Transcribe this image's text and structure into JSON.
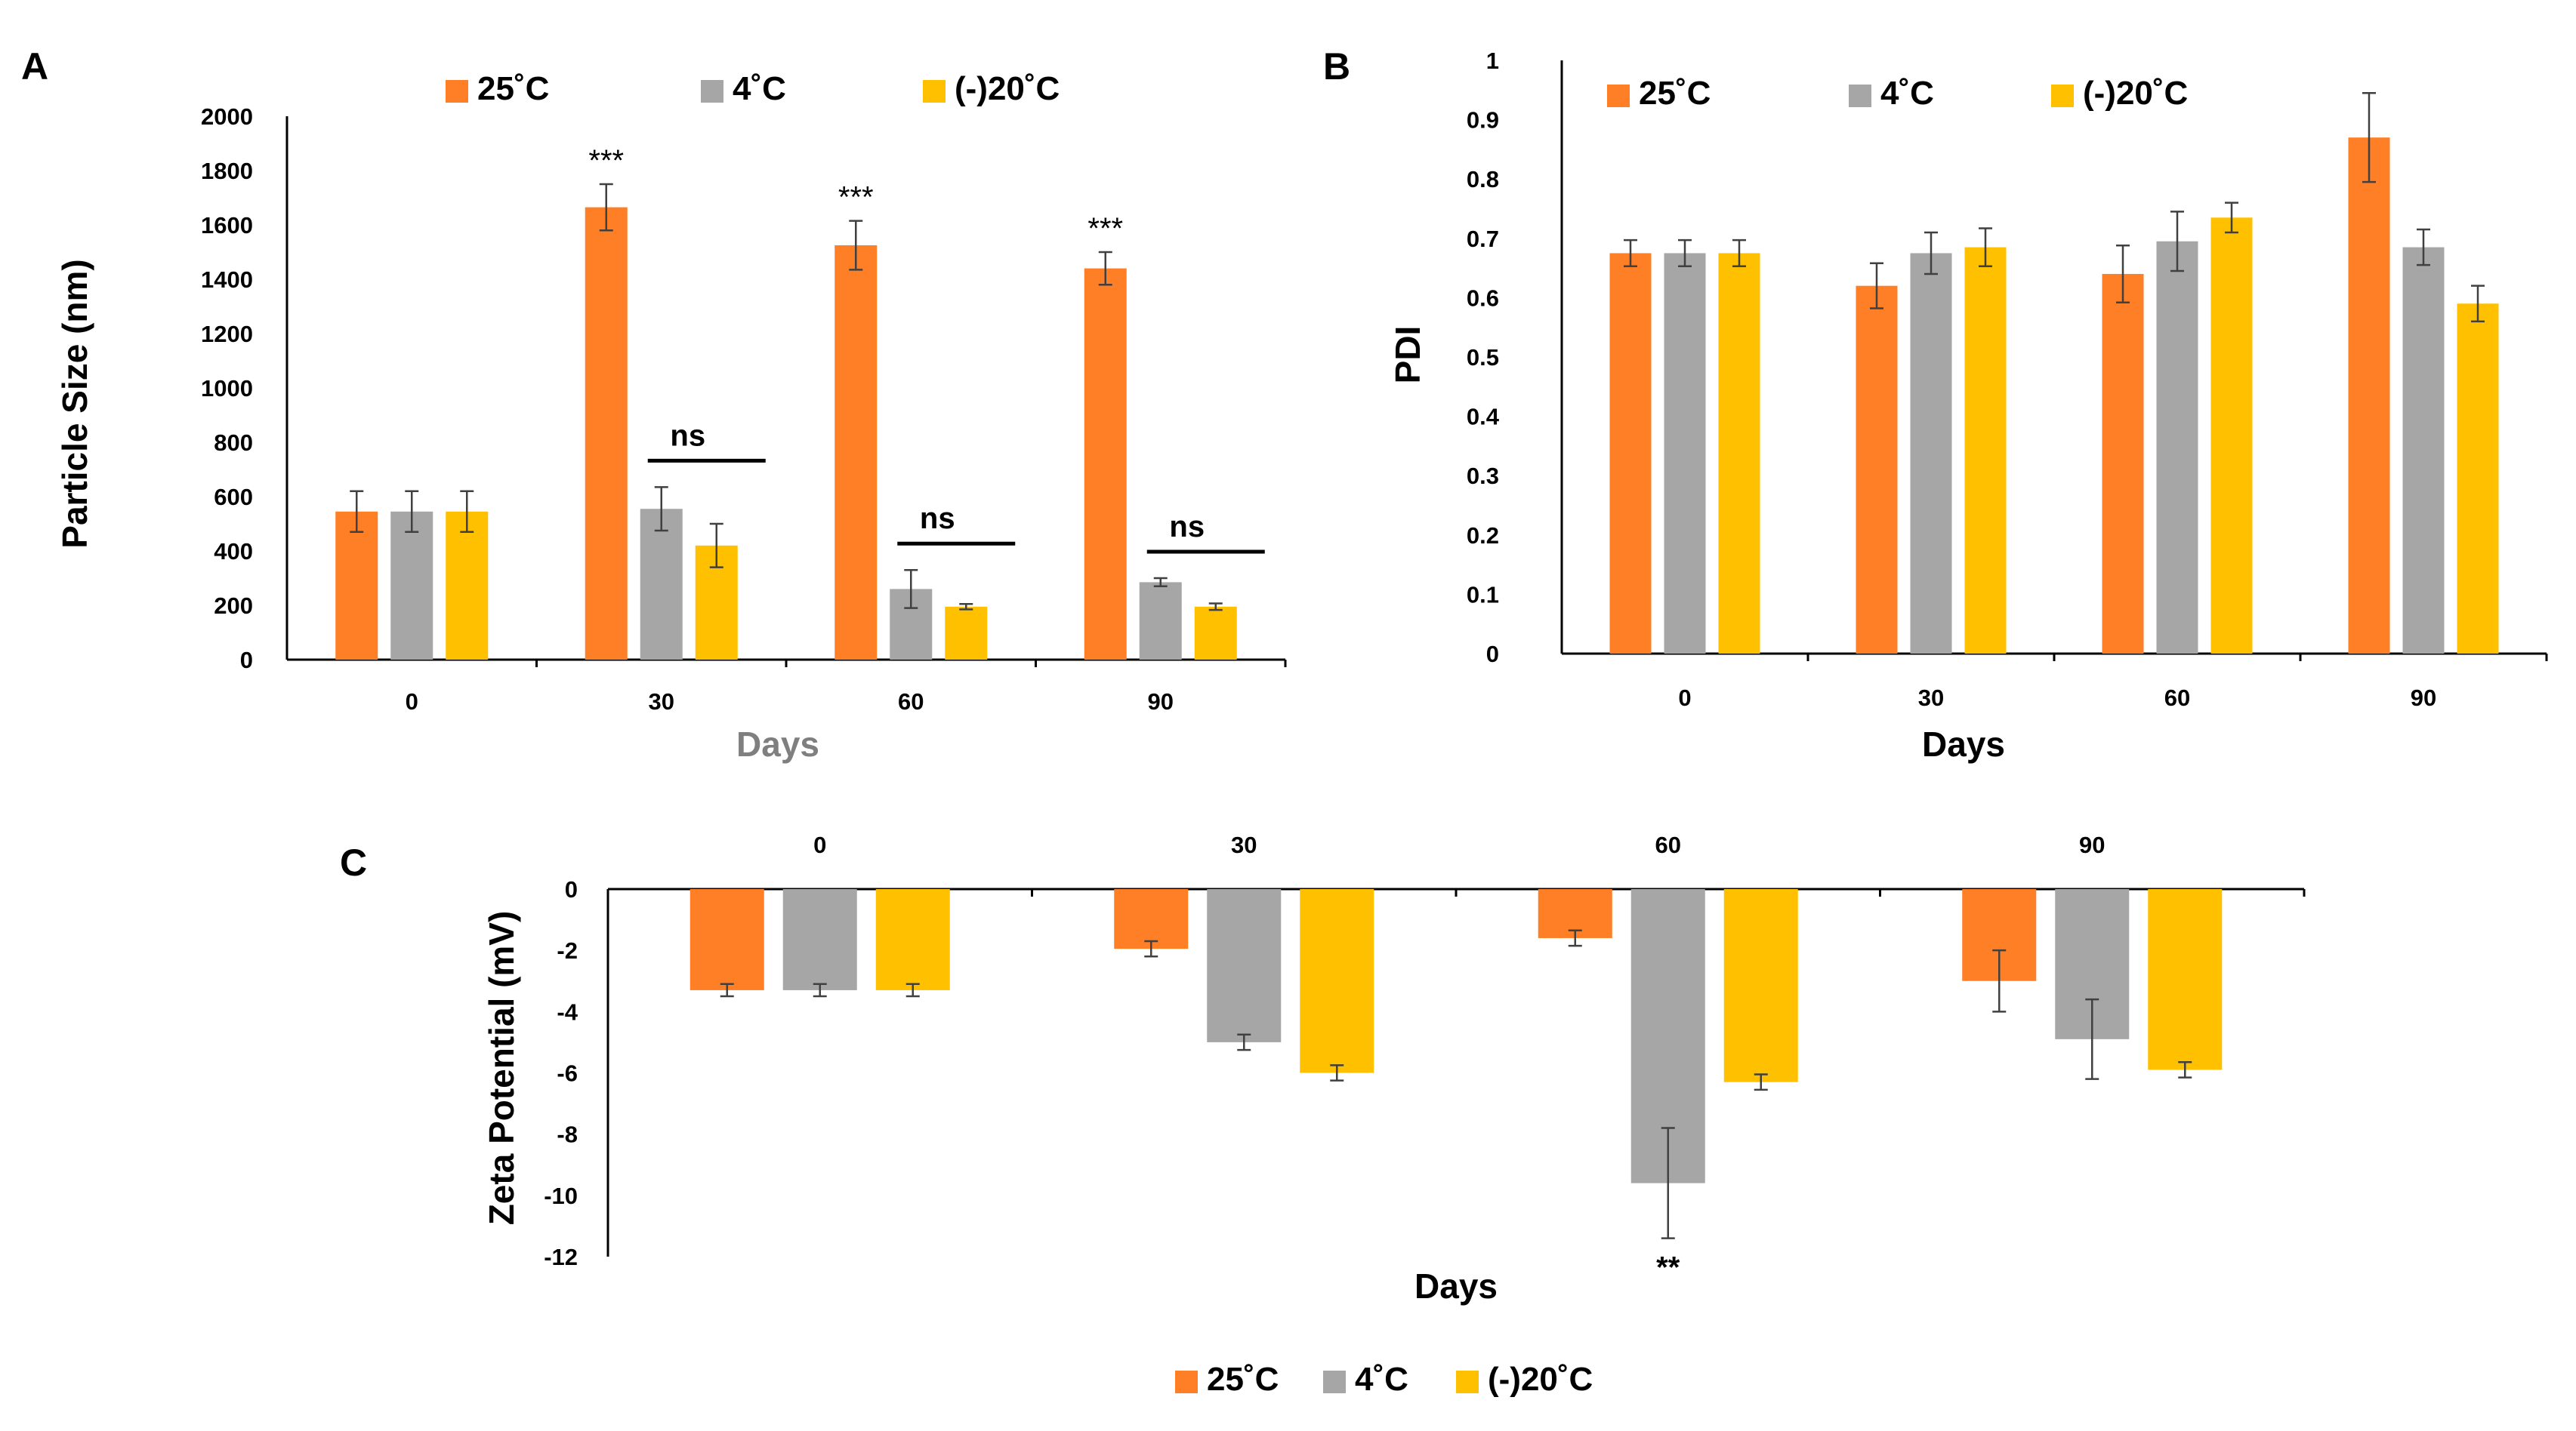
{
  "colors": {
    "s25": "#FF7F27",
    "s4": "#A6A6A6",
    "sneg20": "#FFC000",
    "axis": "#000000",
    "xtitleA": "#7F7F7F"
  },
  "legend": [
    "25˚C",
    "4˚C",
    "(-)20˚C"
  ],
  "chart_data": [
    {
      "panel": "A",
      "type": "bar",
      "categories": [
        "0",
        "30",
        "60",
        "90"
      ],
      "series": [
        {
          "name": "25˚C",
          "values": [
            545,
            1665,
            1525,
            1440
          ],
          "errors": [
            75,
            85,
            90,
            60
          ]
        },
        {
          "name": "4˚C",
          "values": [
            545,
            555,
            260,
            285
          ],
          "errors": [
            75,
            80,
            70,
            15
          ]
        },
        {
          "name": "(-)20˚C",
          "values": [
            545,
            420,
            195,
            195
          ],
          "errors": [
            75,
            80,
            10,
            12
          ]
        }
      ],
      "xlabel": "Days",
      "ylabel": "Particle Size (nm)",
      "ylim": [
        0,
        2000
      ],
      "yticks": [
        "0",
        "200",
        "400",
        "600",
        "800",
        "1000",
        "1200",
        "1400",
        "1600",
        "1800",
        "2000"
      ],
      "annotations": [
        {
          "category": "30",
          "series": "25˚C",
          "text": "***"
        },
        {
          "category": "60",
          "series": "25˚C",
          "text": "***"
        },
        {
          "category": "90",
          "series": "25˚C",
          "text": "***"
        }
      ],
      "ns_labels": [
        "ns",
        "ns",
        "ns"
      ]
    },
    {
      "panel": "B",
      "type": "bar",
      "categories": [
        "0",
        "30",
        "60",
        "90"
      ],
      "series": [
        {
          "name": "25˚C",
          "values": [
            0.675,
            0.62,
            0.64,
            0.87
          ],
          "errors": [
            0.022,
            0.038,
            0.048,
            0.075
          ]
        },
        {
          "name": "4˚C",
          "values": [
            0.675,
            0.675,
            0.695,
            0.685
          ],
          "errors": [
            0.022,
            0.035,
            0.05,
            0.03
          ]
        },
        {
          "name": "(-)20˚C",
          "values": [
            0.675,
            0.685,
            0.735,
            0.59
          ],
          "errors": [
            0.022,
            0.032,
            0.025,
            0.03
          ]
        }
      ],
      "xlabel": "Days",
      "ylabel": "PDI",
      "ylim": [
        0,
        1
      ],
      "yticks": [
        "0",
        "0.1",
        "0.2",
        "0.3",
        "0.4",
        "0.5",
        "0.6",
        "0.7",
        "0.8",
        "0.9",
        "1"
      ]
    },
    {
      "panel": "C",
      "type": "bar",
      "categories": [
        "0",
        "30",
        "60",
        "90"
      ],
      "series": [
        {
          "name": "25˚C",
          "values": [
            -3.3,
            -1.95,
            -1.6,
            -3.0
          ],
          "errors": [
            0.2,
            0.25,
            0.25,
            1.0
          ]
        },
        {
          "name": "4˚C",
          "values": [
            -3.3,
            -5.0,
            -9.6,
            -4.9
          ],
          "errors": [
            0.2,
            0.25,
            1.8,
            1.3
          ]
        },
        {
          "name": "(-)20˚C",
          "values": [
            -3.3,
            -6.0,
            -6.3,
            -5.9
          ],
          "errors": [
            0.2,
            0.25,
            0.25,
            0.25
          ]
        }
      ],
      "xlabel": "Days",
      "ylabel": "Zeta Potential (mV)",
      "ylim": [
        -12,
        0
      ],
      "yticks": [
        "0",
        "-2",
        "-4",
        "-6",
        "-8",
        "-10",
        "-12"
      ],
      "annotations": [
        {
          "category": "60",
          "series": "4˚C",
          "text": "**"
        }
      ]
    }
  ]
}
